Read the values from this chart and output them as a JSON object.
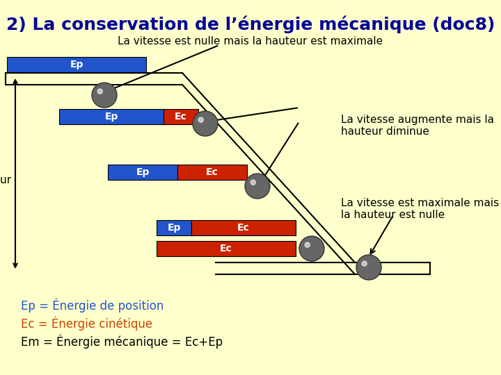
{
  "bg_color": "#FFFFCC",
  "title": "2) La conservation de l’énergie mécanique (doc8)",
  "title_color": "#000099",
  "title_fontsize": 18,
  "subtitle": "La vitesse est nulle mais la hauteur est maximale",
  "annotation1": "La vitesse augmente mais la\nhauteur diminue",
  "annotation2": "La vitesse est maximale mais\nla hauteur est nulle",
  "hauteur_label": "hauteur",
  "ep_color": "#2255CC",
  "ec_color": "#CC2200",
  "ep_label_color": "#2255CC",
  "ec_label_color": "#CC4400",
  "ball_color": "#666666",
  "legend1": "Ep = Énergie de position",
  "legend2": "Ec = Énergie cinétique",
  "legend3": "Em = Énergie mécanique = Ec+Ep"
}
